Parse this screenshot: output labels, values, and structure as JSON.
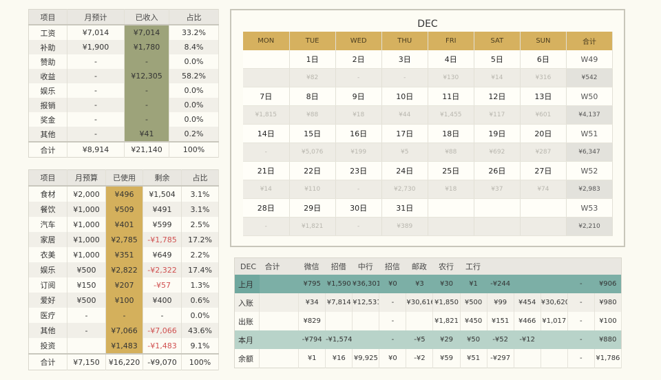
{
  "income": {
    "headers": [
      "项目",
      "月预计",
      "已收入",
      "占比"
    ],
    "rows": [
      [
        "工资",
        "¥7,014",
        "¥7,014",
        "33.2%"
      ],
      [
        "补助",
        "¥1,900",
        "¥1,780",
        "8.4%"
      ],
      [
        "赞助",
        "-",
        "-",
        "0.0%"
      ],
      [
        "收益",
        "-",
        "¥12,305",
        "58.2%"
      ],
      [
        "娱乐",
        "-",
        "-",
        "0.0%"
      ],
      [
        "报销",
        "-",
        "-",
        "0.0%"
      ],
      [
        "奖金",
        "-",
        "-",
        "0.0%"
      ],
      [
        "其他",
        "-",
        "¥41",
        "0.2%"
      ]
    ],
    "total": [
      "合计",
      "¥8,914",
      "¥21,140",
      "100%"
    ]
  },
  "expense": {
    "headers": [
      "项目",
      "月预算",
      "已使用",
      "剩余",
      "占比"
    ],
    "rows": [
      [
        "食材",
        "¥2,000",
        "¥496",
        "¥1,504",
        "3.1%"
      ],
      [
        "餐饮",
        "¥1,000",
        "¥509",
        "¥491",
        "3.1%"
      ],
      [
        "汽车",
        "¥1,000",
        "¥401",
        "¥599",
        "2.5%"
      ],
      [
        "家居",
        "¥1,000",
        "¥2,785",
        "-¥1,785",
        "17.2%"
      ],
      [
        "衣美",
        "¥1,000",
        "¥351",
        "¥649",
        "2.2%"
      ],
      [
        "娱乐",
        "¥500",
        "¥2,822",
        "-¥2,322",
        "17.4%"
      ],
      [
        "订阅",
        "¥150",
        "¥207",
        "-¥57",
        "1.3%"
      ],
      [
        "爱好",
        "¥500",
        "¥100",
        "¥400",
        "0.6%"
      ],
      [
        "医疗",
        "-",
        "-",
        "-",
        "0.0%"
      ],
      [
        "其他",
        "-",
        "¥7,066",
        "-¥7,066",
        "43.6%"
      ],
      [
        "投资",
        "",
        "¥1,483",
        "-¥1,483",
        "9.1%"
      ]
    ],
    "total": [
      "合计",
      "¥7,150",
      "¥16,220",
      "-¥9,070",
      "100%"
    ]
  },
  "calendar": {
    "title": "DEC",
    "headers": [
      "MON",
      "TUE",
      "WED",
      "THU",
      "FRI",
      "SAT",
      "SUN",
      "合计"
    ],
    "weeks": [
      {
        "dates": [
          "",
          "1日",
          "2日",
          "3日",
          "4日",
          "5日",
          "6日"
        ],
        "week": "W49",
        "amounts": [
          "",
          "¥82",
          "-",
          "-",
          "¥130",
          "¥14",
          "¥316"
        ],
        "total": "¥542"
      },
      {
        "dates": [
          "7日",
          "8日",
          "9日",
          "10日",
          "11日",
          "12日",
          "13日"
        ],
        "week": "W50",
        "amounts": [
          "¥1,815",
          "¥88",
          "¥18",
          "¥44",
          "¥1,455",
          "¥117",
          "¥601"
        ],
        "total": "¥4,137"
      },
      {
        "dates": [
          "14日",
          "15日",
          "16日",
          "17日",
          "18日",
          "19日",
          "20日"
        ],
        "week": "W51",
        "amounts": [
          "-",
          "¥5,076",
          "¥199",
          "¥5",
          "¥88",
          "¥692",
          "¥287"
        ],
        "total": "¥6,347"
      },
      {
        "dates": [
          "21日",
          "22日",
          "23日",
          "24日",
          "25日",
          "26日",
          "27日"
        ],
        "week": "W52",
        "amounts": [
          "¥14",
          "¥110",
          "-",
          "¥2,730",
          "¥18",
          "¥37",
          "¥74"
        ],
        "total": "¥2,983"
      },
      {
        "dates": [
          "28日",
          "29日",
          "30日",
          "31日",
          "",
          "",
          ""
        ],
        "week": "W53",
        "amounts": [
          "-",
          "¥1,821",
          "-",
          "¥389",
          "",
          "",
          ""
        ],
        "total": "¥2,210"
      }
    ]
  },
  "accounts": {
    "headers": [
      "DEC",
      "合计",
      "微信",
      "招借",
      "中行",
      "招信",
      "邮政",
      "农行",
      "工行",
      "",
      "",
      "",
      "",
      ""
    ],
    "rows": [
      {
        "label": "上月",
        "style": "t1",
        "cells": [
          "",
          "¥795",
          "¥1,590",
          "¥36,301",
          "¥0",
          "¥3",
          "¥30",
          "¥1",
          "-¥244",
          "",
          "",
          "-",
          "¥906"
        ]
      },
      {
        "label": "入账",
        "style": "",
        "cells": [
          "",
          "¥34",
          "¥7,814",
          "¥12,531",
          "-",
          "¥30,616",
          "¥1,850",
          "¥500",
          "¥99",
          "¥454",
          "¥30,620",
          "-",
          "¥980"
        ]
      },
      {
        "label": "出账",
        "style": "",
        "cells": [
          "",
          "¥829",
          "",
          "",
          "-",
          "",
          "¥1,821",
          "¥450",
          "¥151",
          "¥466",
          "¥1,017",
          "-",
          "¥100"
        ]
      },
      {
        "label": "本月",
        "style": "t2",
        "cells": [
          "",
          "-¥794",
          "-¥1,574",
          "",
          "-",
          "-¥5",
          "¥29",
          "¥50",
          "-¥52",
          "-¥12",
          "",
          "-",
          "¥880"
        ]
      },
      {
        "label": "余额",
        "style": "",
        "cells": [
          "",
          "¥1",
          "¥16",
          "¥9,925",
          "¥0",
          "-¥2",
          "¥59",
          "¥51",
          "-¥297",
          "",
          "",
          "-",
          "¥1,786"
        ]
      }
    ]
  },
  "colors": {
    "income_highlight": "#9da37a",
    "expense_highlight": "#d4b05c",
    "calendar_header": "#d6b15f",
    "teal": "#7cafa6",
    "negative": "#d05050"
  }
}
